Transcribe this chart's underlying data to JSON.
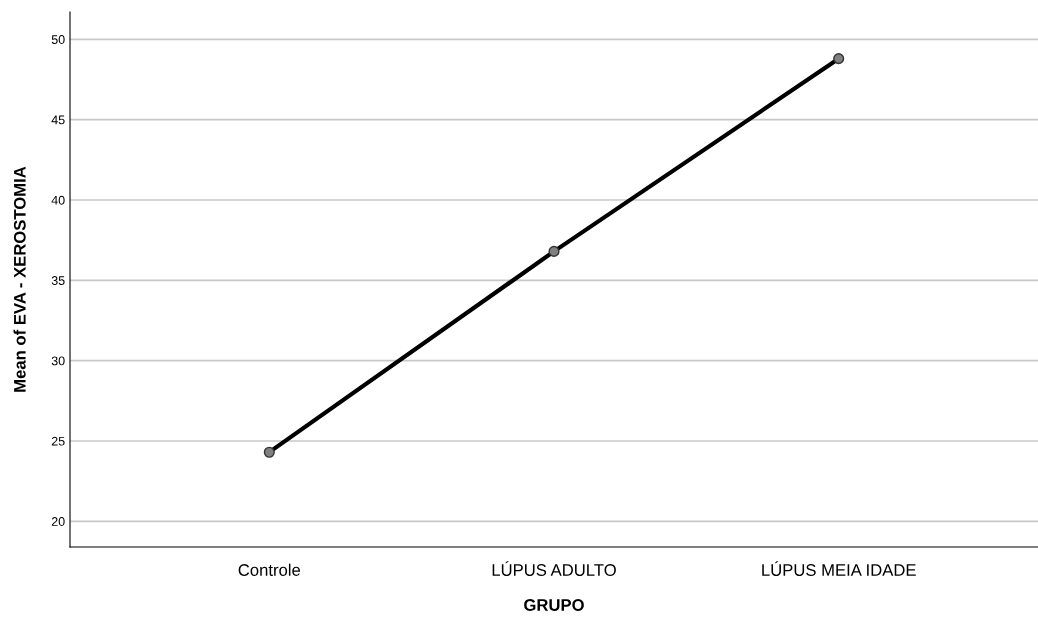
{
  "chart_data": {
    "type": "line",
    "xlabel": "GRUPO",
    "ylabel": "Mean of EVA - XEROSTOMIA",
    "categories": [
      "Controle",
      "LÚPUS ADULTO",
      "LÚPUS MEIA IDADE"
    ],
    "series": [
      {
        "color": "#000000",
        "values": [
          24.3,
          36.8,
          48.8
        ]
      }
    ],
    "ylim": [
      18.4,
      51.7
    ],
    "yticks": [
      20,
      25,
      30,
      35,
      40,
      45,
      50
    ],
    "grid": "y",
    "marker": "circle",
    "line_style": "solid"
  }
}
